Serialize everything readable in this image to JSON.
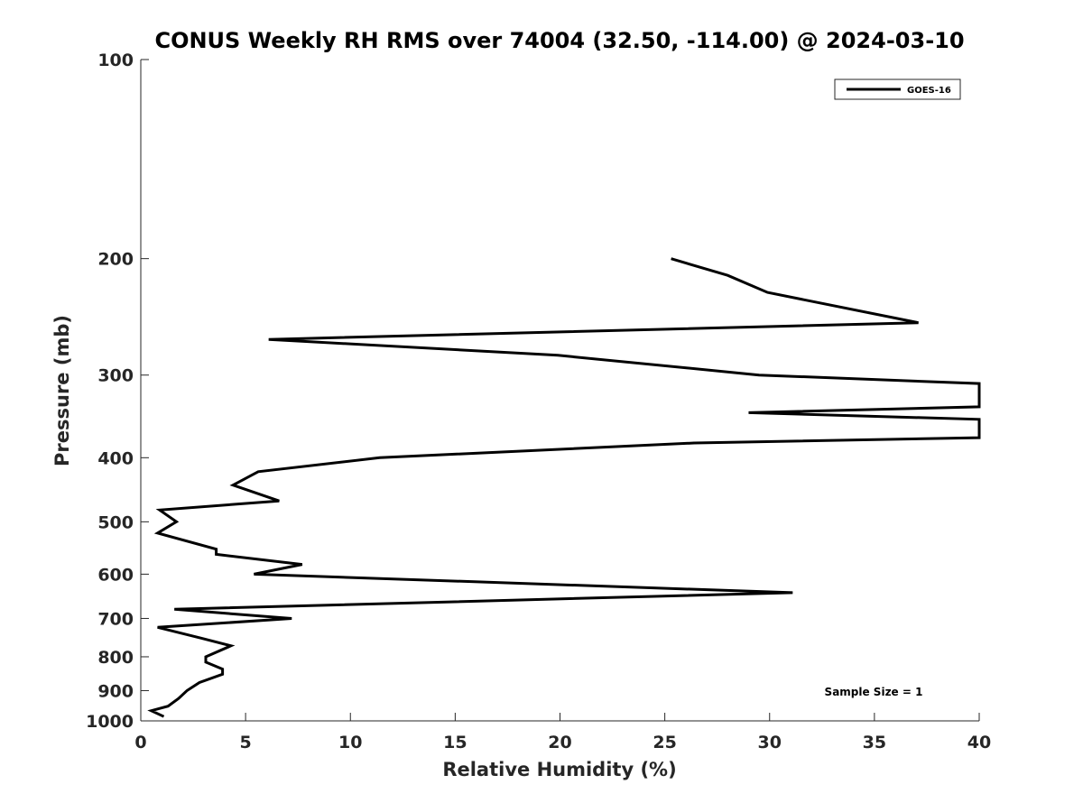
{
  "chart_data": {
    "type": "line",
    "title": "CONUS Weekly RH RMS over 74004 (32.50, -114.00) @ 2024-03-10",
    "xlabel": "Relative Humidity (%)",
    "ylabel": "Pressure (mb)",
    "xlim": [
      0,
      40
    ],
    "ylim": [
      100,
      1000
    ],
    "yscale": "log",
    "yreversed": true,
    "grid": false,
    "legend_position": "top-right",
    "x_ticks": [
      "0",
      "5",
      "10",
      "15",
      "20",
      "25",
      "30",
      "35",
      "40"
    ],
    "y_ticks": [
      "100",
      "200",
      "300",
      "400",
      "500",
      "600",
      "700",
      "800",
      "900",
      "1000"
    ],
    "annotation": "Sample Size = 1",
    "series": [
      {
        "name": "GOES-16",
        "color": "#000000",
        "points": [
          [
            25.3,
            200
          ],
          [
            28.0,
            212
          ],
          [
            29.9,
            225
          ],
          [
            37.1,
            250
          ],
          [
            6.1,
            265
          ],
          [
            19.9,
            280
          ],
          [
            29.5,
            300
          ],
          [
            40.0,
            309
          ],
          [
            40.0,
            335
          ],
          [
            29.0,
            342
          ],
          [
            40.0,
            350
          ],
          [
            40.0,
            373
          ],
          [
            26.4,
            380
          ],
          [
            11.4,
            400
          ],
          [
            5.6,
            420
          ],
          [
            4.4,
            440
          ],
          [
            6.6,
            465
          ],
          [
            0.9,
            480
          ],
          [
            1.7,
            500
          ],
          [
            0.8,
            520
          ],
          [
            3.6,
            550
          ],
          [
            3.6,
            560
          ],
          [
            7.7,
            580
          ],
          [
            5.4,
            600
          ],
          [
            31.1,
            640
          ],
          [
            1.6,
            678
          ],
          [
            7.2,
            700
          ],
          [
            0.8,
            722
          ],
          [
            2.9,
            750
          ],
          [
            4.3,
            770
          ],
          [
            3.1,
            800
          ],
          [
            3.1,
            815
          ],
          [
            3.9,
            835
          ],
          [
            3.9,
            850
          ],
          [
            2.8,
            875
          ],
          [
            2.2,
            900
          ],
          [
            1.8,
            925
          ],
          [
            1.3,
            950
          ],
          [
            0.5,
            965
          ],
          [
            1.1,
            985
          ]
        ]
      }
    ]
  }
}
